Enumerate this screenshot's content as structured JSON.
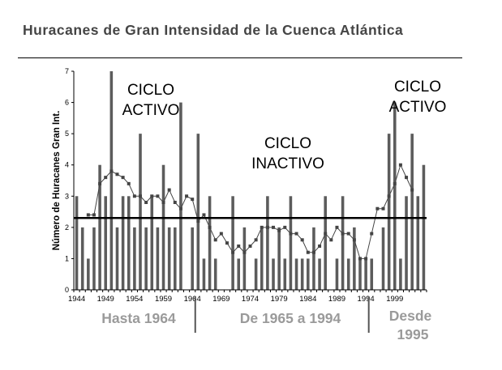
{
  "chart_data": {
    "type": "bar",
    "title": "Huracanes de Gran Intensidad de la Cuenca Atlántica",
    "ylabel": "Número de Huracanes Gran Int.",
    "xlabel": "",
    "ylim": [
      0,
      7
    ],
    "yticks": [
      "0",
      "1",
      "2",
      "3",
      "4",
      "5",
      "6",
      "7"
    ],
    "x_tick_labels": [
      "1944",
      "1949",
      "1954",
      "1959",
      "1964",
      "1969",
      "1974",
      "1979",
      "1984",
      "1989",
      "1994",
      "1999"
    ],
    "x_start": 1944,
    "values": [
      3,
      2,
      1,
      2,
      4,
      3,
      7,
      2,
      3,
      3,
      2,
      5,
      2,
      3,
      2,
      4,
      2,
      2,
      6,
      0,
      2,
      5,
      1,
      3,
      1,
      0,
      0,
      3,
      1,
      2,
      0,
      1,
      2,
      3,
      1,
      2,
      1,
      3,
      1,
      1,
      1,
      2,
      1,
      3,
      0,
      1,
      3,
      1,
      2,
      1,
      1,
      1,
      0,
      2,
      5,
      6,
      1,
      3,
      5,
      3,
      4
    ],
    "moving_average": [
      null,
      null,
      2.4,
      2.4,
      3.4,
      3.6,
      3.8,
      3.7,
      3.6,
      3.4,
      3.0,
      3.0,
      2.8,
      3.0,
      3.0,
      2.8,
      3.2,
      2.8,
      2.6,
      3.0,
      2.9,
      2.2,
      2.4,
      2.0,
      1.6,
      1.8,
      1.5,
      1.2,
      1.4,
      1.2,
      1.4,
      1.6,
      2.0,
      2.0,
      2.0,
      1.9,
      2.0,
      1.8,
      1.8,
      1.6,
      1.2,
      1.2,
      1.4,
      1.8,
      1.6,
      2.0,
      1.8,
      1.8,
      1.6,
      1.0,
      1.0,
      1.8,
      2.6,
      2.6,
      3.0,
      3.4,
      4.0,
      3.6,
      3.2,
      null,
      null
    ],
    "mean_line": 2.3,
    "annotations": {
      "active1": [
        "CICLO",
        "ACTIVO"
      ],
      "inactive": [
        "CICLO",
        "INACTIVO"
      ],
      "active2": [
        "CICLO",
        "ACTIVO"
      ]
    },
    "period_labels": {
      "p1": "Hasta 1964",
      "p2": "De 1965 a 1994",
      "p3_line1": "Desde",
      "p3_line2": "1995"
    },
    "grid": false,
    "legend": "none",
    "colors": {
      "bar": "#5c5c5c",
      "avg": "#444444",
      "mean": "#000000",
      "period_text": "#9a9a9a"
    }
  }
}
